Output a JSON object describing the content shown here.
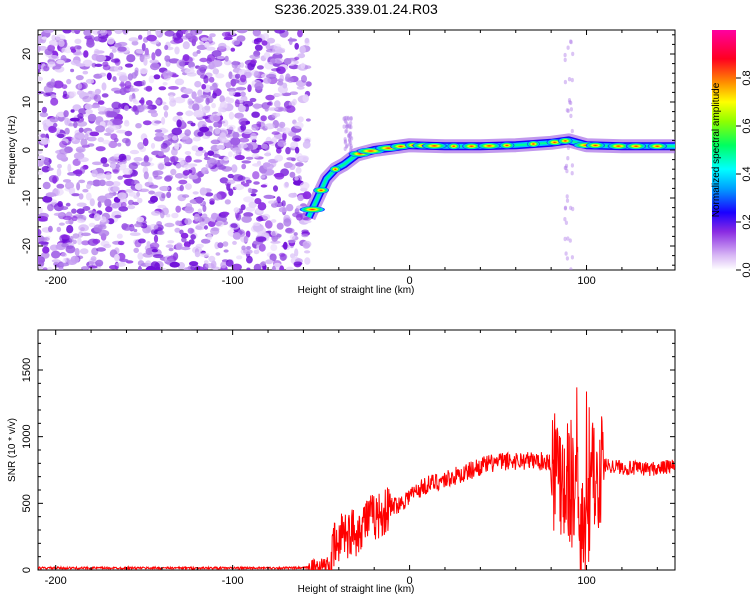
{
  "title": "S236.2025.339.01.24.R03",
  "chart_data": [
    {
      "type": "heatmap",
      "name": "spectrogram",
      "xlabel": "Height of straight line (km)",
      "ylabel": "Frequency (Hz)",
      "xlim": [
        -210,
        150
      ],
      "ylim": [
        -25,
        25
      ],
      "xticks": [
        -200,
        -100,
        0,
        100
      ],
      "yticks": [
        -20,
        -10,
        0,
        10,
        20
      ],
      "colorbar": {
        "label": "Normalized spectral amplitude",
        "range": [
          0.0,
          1.0
        ],
        "ticks": [
          0.0,
          0.2,
          0.4,
          0.6,
          0.8
        ],
        "tick_labels": [
          "0.0",
          "0.2",
          "0.4",
          "0.6",
          "0.8"
        ],
        "colormap": [
          "#ffffff",
          "#8a2be2",
          "#0000ff",
          "#00ffff",
          "#00ff00",
          "#ffff00",
          "#ff8000",
          "#ff0000",
          "#ff00ff"
        ]
      },
      "noise_region": {
        "x_range": [
          -210,
          -57
        ],
        "amplitude": "0.1-0.35"
      },
      "ridge": [
        {
          "x": -57,
          "y": -14
        },
        {
          "x": -52,
          "y": -10
        },
        {
          "x": -47,
          "y": -6
        },
        {
          "x": -42,
          "y": -4
        },
        {
          "x": -37,
          "y": -3
        },
        {
          "x": -30,
          "y": -1
        },
        {
          "x": -20,
          "y": 0
        },
        {
          "x": -10,
          "y": 0.5
        },
        {
          "x": 0,
          "y": 1
        },
        {
          "x": 20,
          "y": 0.8
        },
        {
          "x": 40,
          "y": 0.8
        },
        {
          "x": 60,
          "y": 1
        },
        {
          "x": 80,
          "y": 1.5
        },
        {
          "x": 90,
          "y": 2
        },
        {
          "x": 100,
          "y": 1
        },
        {
          "x": 120,
          "y": 0.8
        },
        {
          "x": 150,
          "y": 0.8
        }
      ]
    },
    {
      "type": "line",
      "name": "snr",
      "xlabel": "Height of straight line (km)",
      "ylabel": "SNR (10 * v/v)",
      "xlim": [
        -210,
        150
      ],
      "ylim": [
        0,
        1800
      ],
      "xticks": [
        -200,
        -100,
        0,
        100
      ],
      "yticks": [
        0,
        500,
        1000,
        1500
      ],
      "color": "#ff0000",
      "series": [
        {
          "name": "SNR",
          "x": [
            -210,
            -150,
            -100,
            -60,
            -45,
            -42,
            -40,
            -38,
            -35,
            -32,
            -30,
            -25,
            -20,
            -15,
            -10,
            -5,
            0,
            10,
            20,
            30,
            40,
            50,
            60,
            70,
            80,
            85,
            90,
            95,
            97,
            99,
            101,
            103,
            105,
            110,
            120,
            130,
            140,
            150
          ],
          "y": [
            15,
            15,
            15,
            15,
            40,
            200,
            150,
            350,
            250,
            300,
            280,
            380,
            400,
            420,
            480,
            500,
            560,
            640,
            680,
            720,
            780,
            810,
            820,
            820,
            810,
            760,
            700,
            500,
            300,
            450,
            350,
            600,
            780,
            790,
            770,
            760,
            760,
            780
          ]
        }
      ]
    }
  ]
}
